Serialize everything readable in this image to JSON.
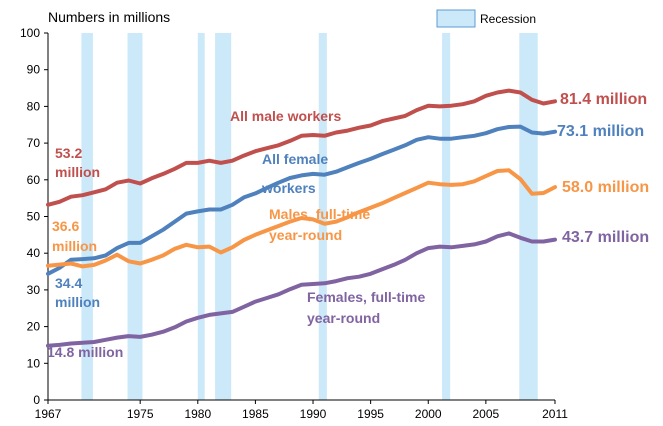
{
  "chart_data": {
    "type": "line",
    "ylabel": "Numbers in millions",
    "ylim": [
      0,
      100
    ],
    "yticks": [
      0,
      10,
      20,
      30,
      40,
      50,
      60,
      70,
      80,
      90,
      100
    ],
    "xlim": [
      1967,
      2011
    ],
    "xticks": [
      1967,
      1975,
      1980,
      1985,
      1990,
      1995,
      2000,
      2005,
      2011
    ],
    "grid": false,
    "legend": {
      "label": "Recession",
      "placement": "top-right",
      "color": "#cce9f9"
    },
    "recessions": [
      [
        1969.9,
        1970.9
      ],
      [
        1973.9,
        1975.2
      ],
      [
        1980.0,
        1980.6
      ],
      [
        1981.5,
        1982.9
      ],
      [
        1990.5,
        1991.2
      ],
      [
        2001.2,
        2001.9
      ],
      [
        2007.9,
        2009.5
      ]
    ],
    "x": [
      1967,
      1968,
      1969,
      1970,
      1971,
      1972,
      1973,
      1974,
      1975,
      1976,
      1977,
      1978,
      1979,
      1980,
      1981,
      1982,
      1983,
      1984,
      1985,
      1986,
      1987,
      1988,
      1989,
      1990,
      1991,
      1992,
      1993,
      1994,
      1995,
      1996,
      1997,
      1998,
      1999,
      2000,
      2001,
      2002,
      2003,
      2004,
      2005,
      2006,
      2007,
      2008,
      2009,
      2010,
      2011
    ],
    "series": [
      {
        "name": "All male workers",
        "color": "#c0504d",
        "values": [
          53.2,
          54.0,
          55.4,
          55.8,
          56.6,
          57.4,
          59.2,
          59.8,
          59.0,
          60.4,
          61.6,
          63.0,
          64.6,
          64.6,
          65.2,
          64.6,
          65.2,
          66.6,
          67.8,
          68.6,
          69.4,
          70.6,
          72.0,
          72.2,
          72.0,
          72.9,
          73.4,
          74.2,
          74.8,
          76.0,
          76.7,
          77.4,
          79.0,
          80.2,
          80.0,
          80.2,
          80.6,
          81.4,
          82.9,
          83.8,
          84.3,
          83.8,
          81.8,
          80.8,
          81.4
        ]
      },
      {
        "name": "All female workers",
        "color": "#4f81bd",
        "values": [
          34.4,
          36.0,
          38.2,
          38.4,
          38.6,
          39.4,
          41.4,
          42.8,
          42.8,
          44.6,
          46.4,
          48.6,
          50.8,
          51.4,
          51.9,
          51.9,
          53.2,
          55.2,
          56.3,
          57.8,
          59.2,
          60.5,
          61.2,
          61.6,
          61.4,
          62.2,
          63.4,
          64.6,
          65.7,
          67.0,
          68.2,
          69.4,
          70.9,
          71.6,
          71.2,
          71.2,
          71.6,
          72.0,
          72.7,
          73.8,
          74.4,
          74.5,
          72.9,
          72.6,
          73.1
        ]
      },
      {
        "name": "Males, full-time year-round",
        "color": "#f79646",
        "values": [
          36.6,
          36.9,
          37.2,
          36.4,
          36.8,
          38.0,
          39.6,
          37.8,
          37.2,
          38.2,
          39.4,
          41.2,
          42.3,
          41.6,
          41.8,
          40.2,
          41.6,
          43.6,
          45.0,
          46.2,
          47.4,
          48.6,
          49.6,
          49.2,
          48.0,
          48.6,
          49.8,
          51.2,
          52.4,
          53.6,
          55.0,
          56.4,
          57.8,
          59.2,
          58.8,
          58.6,
          58.8,
          59.6,
          61.0,
          62.4,
          62.6,
          60.2,
          56.2,
          56.4,
          58.0
        ]
      },
      {
        "name": "Females, full-time year-round",
        "color": "#8064a2",
        "values": [
          14.8,
          15.0,
          15.4,
          15.6,
          15.8,
          16.4,
          17.0,
          17.4,
          17.2,
          17.8,
          18.6,
          19.8,
          21.4,
          22.4,
          23.2,
          23.6,
          24.0,
          25.4,
          26.8,
          27.8,
          28.8,
          30.2,
          31.4,
          31.6,
          31.8,
          32.4,
          33.2,
          33.6,
          34.4,
          35.6,
          36.8,
          38.2,
          40.0,
          41.4,
          41.8,
          41.6,
          42.0,
          42.4,
          43.2,
          44.6,
          45.4,
          44.2,
          43.2,
          43.2,
          43.7
        ]
      }
    ],
    "annotations": [
      {
        "text": "All male workers",
        "color": "#c0504d"
      },
      {
        "text": "All female",
        "color": "#4f81bd"
      },
      {
        "text": "workers",
        "color": "#4f81bd"
      },
      {
        "text": "Males, full-time",
        "color": "#f79646"
      },
      {
        "text": "year-round",
        "color": "#f79646"
      },
      {
        "text": "Females, full-time",
        "color": "#8064a2"
      },
      {
        "text": "year-round",
        "color": "#8064a2"
      },
      {
        "text": "53.2",
        "color": "#c0504d"
      },
      {
        "text": "million",
        "color": "#c0504d"
      },
      {
        "text": "36.6",
        "color": "#f79646"
      },
      {
        "text": "million",
        "color": "#f79646"
      },
      {
        "text": "34.4",
        "color": "#4f81bd"
      },
      {
        "text": "million",
        "color": "#4f81bd"
      },
      {
        "text": "14.8 million",
        "color": "#8064a2"
      },
      {
        "text": "81.4 million",
        "color": "#c0504d"
      },
      {
        "text": "73.1 million",
        "color": "#4f81bd"
      },
      {
        "text": "58.0 million",
        "color": "#f79646"
      },
      {
        "text": "43.7 million",
        "color": "#8064a2"
      }
    ]
  }
}
